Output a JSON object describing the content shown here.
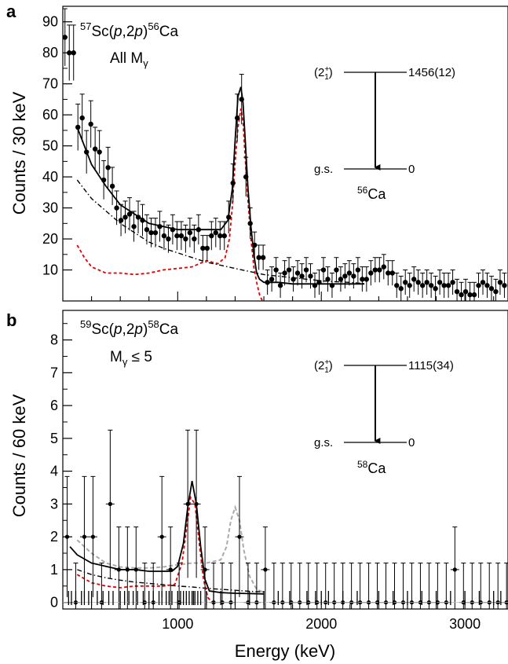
{
  "colors": {
    "data": "#000000",
    "fit": "#000000",
    "response": "#e00000",
    "background": "#000000",
    "alt_fit": "#aaaaaa"
  },
  "chart_data": [
    {
      "panel_letter": "a",
      "type": "scatter",
      "reaction": {
        "pre": "57",
        "sym": "Sc(",
        "p1": "p",
        "mid": ",2",
        "p2": "p",
        "close": ")",
        "post": "56",
        "tgt": "Ca"
      },
      "condition": {
        "main": "All M",
        "sub": "γ"
      },
      "ylabel": "Counts / 30 keV",
      "xlim": [
        200,
        3300
      ],
      "ylim": [
        0,
        95
      ],
      "yticks": [
        10,
        20,
        30,
        40,
        50,
        60,
        70,
        80,
        90
      ],
      "points": [
        [
          215,
          85
        ],
        [
          245,
          80
        ],
        [
          275,
          80
        ],
        [
          305,
          56
        ],
        [
          335,
          59
        ],
        [
          365,
          48
        ],
        [
          395,
          57
        ],
        [
          425,
          49
        ],
        [
          455,
          48
        ],
        [
          485,
          39
        ],
        [
          515,
          43
        ],
        [
          545,
          37
        ],
        [
          575,
          30
        ],
        [
          605,
          26
        ],
        [
          635,
          27
        ],
        [
          665,
          28
        ],
        [
          695,
          24
        ],
        [
          725,
          27
        ],
        [
          755,
          26
        ],
        [
          785,
          23
        ],
        [
          815,
          22
        ],
        [
          845,
          22
        ],
        [
          875,
          24
        ],
        [
          905,
          21
        ],
        [
          935,
          20
        ],
        [
          965,
          23
        ],
        [
          995,
          21
        ],
        [
          1025,
          21
        ],
        [
          1055,
          20
        ],
        [
          1085,
          22
        ],
        [
          1115,
          20
        ],
        [
          1145,
          23
        ],
        [
          1175,
          17
        ],
        [
          1205,
          17
        ],
        [
          1235,
          21
        ],
        [
          1265,
          22
        ],
        [
          1295,
          21
        ],
        [
          1325,
          21
        ],
        [
          1355,
          27
        ],
        [
          1385,
          38
        ],
        [
          1415,
          59
        ],
        [
          1445,
          65
        ],
        [
          1475,
          40
        ],
        [
          1505,
          25
        ],
        [
          1535,
          18
        ],
        [
          1565,
          14
        ],
        [
          1595,
          14
        ],
        [
          1625,
          6
        ],
        [
          1655,
          7
        ],
        [
          1685,
          10
        ],
        [
          1715,
          5
        ],
        [
          1745,
          9
        ],
        [
          1775,
          10
        ],
        [
          1805,
          7
        ],
        [
          1835,
          9
        ],
        [
          1865,
          8
        ],
        [
          1895,
          10
        ],
        [
          1925,
          8
        ],
        [
          1955,
          5
        ],
        [
          1985,
          6
        ],
        [
          2015,
          10
        ],
        [
          2045,
          7
        ],
        [
          2075,
          5
        ],
        [
          2105,
          10
        ],
        [
          2135,
          7
        ],
        [
          2165,
          8
        ],
        [
          2195,
          9
        ],
        [
          2225,
          8
        ],
        [
          2255,
          10
        ],
        [
          2285,
          7
        ],
        [
          2315,
          7
        ],
        [
          2345,
          9
        ],
        [
          2375,
          10
        ],
        [
          2405,
          10
        ],
        [
          2435,
          11
        ],
        [
          2465,
          9
        ],
        [
          2495,
          9
        ],
        [
          2525,
          5
        ],
        [
          2555,
          4
        ],
        [
          2585,
          6
        ],
        [
          2615,
          5
        ],
        [
          2645,
          7
        ],
        [
          2675,
          6
        ],
        [
          2705,
          5
        ],
        [
          2735,
          6
        ],
        [
          2765,
          5
        ],
        [
          2795,
          4
        ],
        [
          2825,
          6
        ],
        [
          2855,
          5
        ],
        [
          2885,
          5
        ],
        [
          2915,
          6
        ],
        [
          2945,
          3
        ],
        [
          2975,
          2
        ],
        [
          3005,
          3
        ],
        [
          3035,
          2
        ],
        [
          3065,
          2
        ],
        [
          3095,
          5
        ],
        [
          3125,
          6
        ],
        [
          3155,
          5
        ],
        [
          3185,
          4
        ],
        [
          3215,
          3
        ],
        [
          3245,
          6
        ],
        [
          3275,
          5
        ]
      ],
      "fit": [
        [
          300,
          56
        ],
        [
          400,
          44
        ],
        [
          500,
          37
        ],
        [
          600,
          31
        ],
        [
          700,
          28
        ],
        [
          800,
          25
        ],
        [
          900,
          24
        ],
        [
          1000,
          23
        ],
        [
          1100,
          23
        ],
        [
          1200,
          23
        ],
        [
          1300,
          23
        ],
        [
          1350,
          26
        ],
        [
          1380,
          36
        ],
        [
          1400,
          52
        ],
        [
          1420,
          66
        ],
        [
          1440,
          69
        ],
        [
          1455,
          64
        ],
        [
          1470,
          52
        ],
        [
          1490,
          36
        ],
        [
          1510,
          24
        ],
        [
          1530,
          15
        ],
        [
          1550,
          9
        ],
        [
          1570,
          7
        ],
        [
          1600,
          6
        ],
        [
          1700,
          6
        ],
        [
          1800,
          5.5
        ],
        [
          1900,
          5.5
        ],
        [
          2000,
          5.5
        ],
        [
          2100,
          5.5
        ],
        [
          2200,
          5.5
        ],
        [
          2300,
          5.5
        ]
      ],
      "response": [
        [
          300,
          18
        ],
        [
          350,
          14
        ],
        [
          400,
          11
        ],
        [
          500,
          9
        ],
        [
          600,
          9
        ],
        [
          700,
          8.5
        ],
        [
          800,
          9
        ],
        [
          900,
          10
        ],
        [
          1000,
          10.5
        ],
        [
          1100,
          11
        ],
        [
          1200,
          13
        ],
        [
          1280,
          12
        ],
        [
          1330,
          14
        ],
        [
          1360,
          20
        ],
        [
          1380,
          30
        ],
        [
          1400,
          45
        ],
        [
          1420,
          56
        ],
        [
          1440,
          62
        ],
        [
          1455,
          58
        ],
        [
          1470,
          46
        ],
        [
          1490,
          32
        ],
        [
          1510,
          20
        ],
        [
          1530,
          11
        ],
        [
          1550,
          6
        ],
        [
          1570,
          2
        ],
        [
          1590,
          0
        ]
      ],
      "background": [
        [
          300,
          39
        ],
        [
          400,
          33
        ],
        [
          500,
          29
        ],
        [
          600,
          25
        ],
        [
          700,
          22
        ],
        [
          800,
          19
        ],
        [
          900,
          17
        ],
        [
          1000,
          15.5
        ],
        [
          1100,
          14
        ],
        [
          1200,
          12.5
        ],
        [
          1300,
          11.5
        ],
        [
          1400,
          10.5
        ],
        [
          1500,
          9.5
        ],
        [
          1600,
          8.5
        ],
        [
          1700,
          8
        ],
        [
          1800,
          7.5
        ],
        [
          1900,
          7
        ],
        [
          2000,
          6.5
        ],
        [
          2100,
          6.2
        ],
        [
          2200,
          6
        ],
        [
          2300,
          5.6
        ]
      ],
      "level_scheme": {
        "state": "(2",
        "state_sup": "+",
        "state_sub": "1",
        "state_close": ")",
        "energy": "1456(12)",
        "gs": "g.s.",
        "gs_energy": "0",
        "nucleus_mass": "56",
        "nucleus": "Ca"
      }
    },
    {
      "panel_letter": "b",
      "type": "scatter",
      "reaction": {
        "pre": "59",
        "sym": "Sc(",
        "p1": "p",
        "mid": ",2",
        "p2": "p",
        "close": ")",
        "post": "58",
        "tgt": "Ca"
      },
      "condition": {
        "main": "M",
        "sub": "γ",
        "tail": " ≤ 5"
      },
      "ylabel": "Counts / 60 keV",
      "xlabel": "Energy (keV)",
      "xlim": [
        200,
        3300
      ],
      "ylim": [
        -0.2,
        8.9
      ],
      "yticks": [
        0,
        1,
        2,
        3,
        4,
        5,
        6,
        7,
        8
      ],
      "xticks": [
        1000,
        2000,
        3000
      ],
      "points": [
        [
          230,
          2
        ],
        [
          290,
          0
        ],
        [
          350,
          2
        ],
        [
          410,
          2
        ],
        [
          470,
          0
        ],
        [
          530,
          3
        ],
        [
          590,
          1
        ],
        [
          650,
          1
        ],
        [
          710,
          1
        ],
        [
          770,
          0
        ],
        [
          830,
          0
        ],
        [
          890,
          2
        ],
        [
          950,
          1
        ],
        [
          1010,
          0
        ],
        [
          1070,
          3
        ],
        [
          1130,
          3
        ],
        [
          1190,
          1
        ],
        [
          1250,
          0
        ],
        [
          1310,
          0
        ],
        [
          1370,
          0
        ],
        [
          1430,
          2
        ],
        [
          1490,
          0
        ],
        [
          1550,
          0
        ],
        [
          1610,
          1
        ],
        [
          1670,
          0
        ],
        [
          1730,
          0
        ],
        [
          1790,
          0
        ],
        [
          1850,
          0
        ],
        [
          1910,
          0
        ],
        [
          1970,
          0
        ],
        [
          2030,
          0
        ],
        [
          2090,
          0
        ],
        [
          2150,
          0
        ],
        [
          2210,
          0
        ],
        [
          2270,
          0
        ],
        [
          2330,
          0
        ],
        [
          2390,
          0
        ],
        [
          2450,
          0
        ],
        [
          2510,
          0
        ],
        [
          2570,
          0
        ],
        [
          2630,
          0
        ],
        [
          2690,
          0
        ],
        [
          2750,
          0
        ],
        [
          2810,
          0
        ],
        [
          2870,
          0
        ],
        [
          2930,
          1
        ],
        [
          2990,
          0
        ],
        [
          3050,
          0
        ],
        [
          3110,
          0
        ],
        [
          3170,
          0
        ],
        [
          3230,
          0
        ],
        [
          3290,
          0
        ]
      ],
      "fit": [
        [
          250,
          1.7
        ],
        [
          300,
          1.45
        ],
        [
          400,
          1.2
        ],
        [
          500,
          1.1
        ],
        [
          600,
          1.0
        ],
        [
          700,
          1.0
        ],
        [
          800,
          0.95
        ],
        [
          900,
          0.95
        ],
        [
          960,
          0.95
        ],
        [
          1000,
          1.1
        ],
        [
          1040,
          1.8
        ],
        [
          1070,
          2.9
        ],
        [
          1100,
          3.7
        ],
        [
          1130,
          3.0
        ],
        [
          1160,
          1.7
        ],
        [
          1190,
          0.7
        ],
        [
          1220,
          0.35
        ],
        [
          1300,
          0.3
        ],
        [
          1400,
          0.28
        ],
        [
          1500,
          0.27
        ],
        [
          1600,
          0.26
        ]
      ],
      "response": [
        [
          300,
          0.85
        ],
        [
          400,
          0.6
        ],
        [
          500,
          0.5
        ],
        [
          600,
          0.45
        ],
        [
          700,
          0.5
        ],
        [
          800,
          0.5
        ],
        [
          900,
          0.5
        ],
        [
          980,
          0.55
        ],
        [
          1030,
          1.2
        ],
        [
          1060,
          2.2
        ],
        [
          1090,
          3.2
        ],
        [
          1120,
          3.0
        ],
        [
          1150,
          1.8
        ],
        [
          1180,
          0.7
        ],
        [
          1210,
          0.15
        ],
        [
          1240,
          0
        ]
      ],
      "background": [
        [
          300,
          1.0
        ],
        [
          400,
          0.85
        ],
        [
          500,
          0.75
        ],
        [
          600,
          0.68
        ],
        [
          700,
          0.62
        ],
        [
          800,
          0.58
        ],
        [
          900,
          0.54
        ],
        [
          1000,
          0.5
        ],
        [
          1100,
          0.47
        ],
        [
          1200,
          0.43
        ],
        [
          1300,
          0.4
        ],
        [
          1400,
          0.37
        ],
        [
          1500,
          0.34
        ],
        [
          1600,
          0.32
        ]
      ],
      "alt_fit": [
        [
          300,
          1.9
        ],
        [
          400,
          1.5
        ],
        [
          500,
          1.2
        ],
        [
          600,
          1.08
        ],
        [
          700,
          1.05
        ],
        [
          800,
          1.05
        ],
        [
          900,
          1.08
        ],
        [
          1000,
          1.15
        ],
        [
          1100,
          1.2
        ],
        [
          1200,
          1.2
        ],
        [
          1300,
          1.3
        ],
        [
          1340,
          1.7
        ],
        [
          1370,
          2.5
        ],
        [
          1400,
          2.9
        ],
        [
          1430,
          2.5
        ],
        [
          1460,
          1.6
        ],
        [
          1500,
          0.8
        ],
        [
          1550,
          0.4
        ],
        [
          1600,
          0.3
        ]
      ],
      "rug": [
        240,
        260,
        290,
        330,
        350,
        380,
        400,
        440,
        480,
        520,
        550,
        600,
        630,
        660,
        690,
        720,
        760,
        800,
        830,
        870,
        890,
        920,
        940,
        960,
        1000,
        1020,
        1040,
        1060,
        1080,
        1100,
        1110,
        1120,
        1140,
        1160,
        1200,
        1250,
        1300,
        1400,
        1500,
        1600,
        1700,
        1780,
        1900,
        1960,
        2000,
        2050,
        2150,
        2250,
        2400,
        2500,
        2600,
        2700,
        2800,
        2900,
        3000,
        3100,
        3200,
        3250
      ],
      "level_scheme": {
        "state": "(2",
        "state_sup": "+",
        "state_sub": "1",
        "state_close": ")",
        "energy": "1115(34)",
        "gs": "g.s.",
        "gs_energy": "0",
        "nucleus_mass": "58",
        "nucleus": "Ca"
      }
    }
  ]
}
